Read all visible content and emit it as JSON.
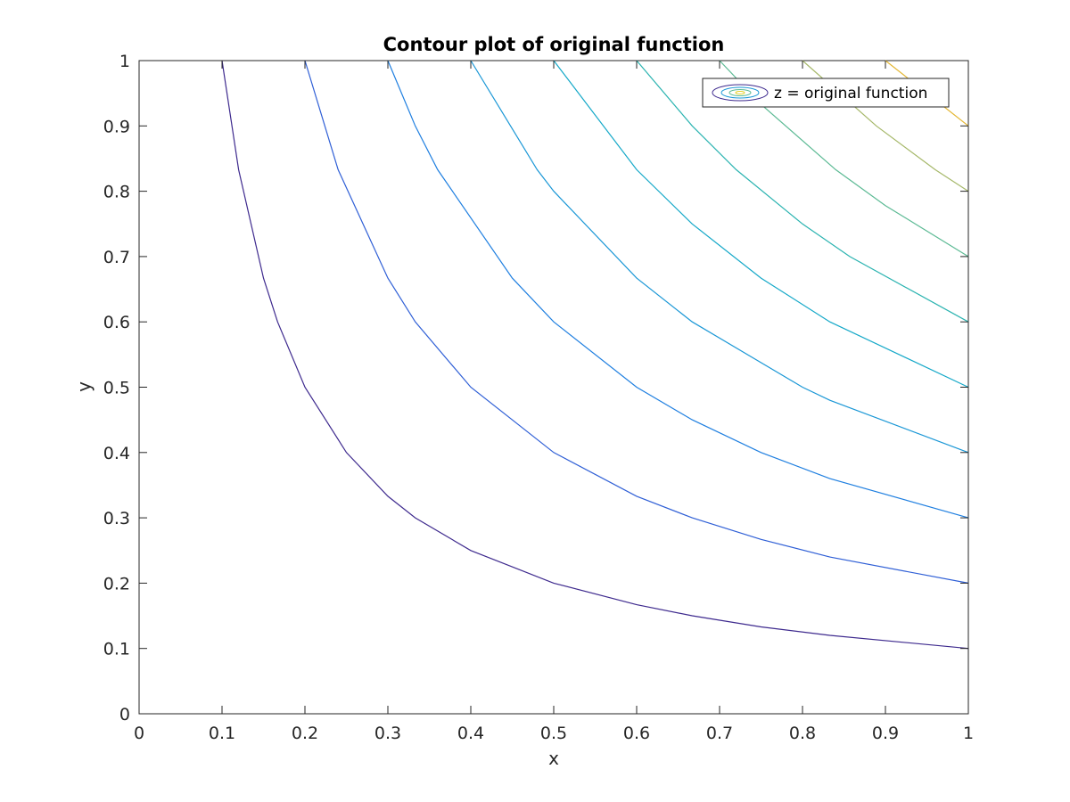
{
  "chart_data": {
    "type": "contour",
    "title": "Contour plot of original function",
    "xlabel": "x",
    "ylabel": "y",
    "xlim": [
      0,
      1
    ],
    "ylim": [
      0,
      1
    ],
    "x_ticks": [
      "0",
      "0.1",
      "0.2",
      "0.3",
      "0.4",
      "0.5",
      "0.6",
      "0.7",
      "0.8",
      "0.9",
      "1"
    ],
    "y_ticks": [
      "0",
      "0.1",
      "0.2",
      "0.3",
      "0.4",
      "0.5",
      "0.6",
      "0.7",
      "0.8",
      "0.9",
      "1"
    ],
    "grid": false,
    "legend": {
      "label": "z = original function",
      "position": "top-right"
    },
    "contours": [
      {
        "level": 0.1,
        "color": "#3e2a8e",
        "points": [
          [
            0.1,
            1
          ],
          [
            0.12,
            0.833
          ],
          [
            0.15,
            0.667
          ],
          [
            0.167,
            0.6
          ],
          [
            0.2,
            0.5
          ],
          [
            0.25,
            0.4
          ],
          [
            0.3,
            0.333
          ],
          [
            0.333,
            0.3
          ],
          [
            0.4,
            0.25
          ],
          [
            0.5,
            0.2
          ],
          [
            0.6,
            0.167
          ],
          [
            0.667,
            0.15
          ],
          [
            0.75,
            0.133
          ],
          [
            0.833,
            0.12
          ],
          [
            1,
            0.1
          ]
        ]
      },
      {
        "level": 0.2,
        "color": "#2f5fd6",
        "points": [
          [
            0.2,
            1
          ],
          [
            0.24,
            0.833
          ],
          [
            0.3,
            0.667
          ],
          [
            0.333,
            0.6
          ],
          [
            0.4,
            0.5
          ],
          [
            0.5,
            0.4
          ],
          [
            0.6,
            0.333
          ],
          [
            0.667,
            0.3
          ],
          [
            0.75,
            0.267
          ],
          [
            0.833,
            0.24
          ],
          [
            1,
            0.2
          ]
        ]
      },
      {
        "level": 0.3,
        "color": "#1f7fe0",
        "points": [
          [
            0.3,
            1
          ],
          [
            0.333,
            0.9
          ],
          [
            0.36,
            0.833
          ],
          [
            0.45,
            0.667
          ],
          [
            0.5,
            0.6
          ],
          [
            0.6,
            0.5
          ],
          [
            0.667,
            0.45
          ],
          [
            0.75,
            0.4
          ],
          [
            0.833,
            0.36
          ],
          [
            1,
            0.3
          ]
        ]
      },
      {
        "level": 0.4,
        "color": "#1a97d6",
        "points": [
          [
            0.4,
            1
          ],
          [
            0.48,
            0.833
          ],
          [
            0.5,
            0.8
          ],
          [
            0.6,
            0.667
          ],
          [
            0.667,
            0.6
          ],
          [
            0.8,
            0.5
          ],
          [
            0.833,
            0.48
          ],
          [
            1,
            0.4
          ]
        ]
      },
      {
        "level": 0.5,
        "color": "#14a8c8",
        "points": [
          [
            0.5,
            1
          ],
          [
            0.6,
            0.833
          ],
          [
            0.667,
            0.75
          ],
          [
            0.75,
            0.667
          ],
          [
            0.833,
            0.6
          ],
          [
            1,
            0.5
          ]
        ]
      },
      {
        "level": 0.6,
        "color": "#2ab3b0",
        "points": [
          [
            0.6,
            1
          ],
          [
            0.667,
            0.9
          ],
          [
            0.72,
            0.833
          ],
          [
            0.8,
            0.75
          ],
          [
            0.857,
            0.7
          ],
          [
            1,
            0.6
          ]
        ]
      },
      {
        "level": 0.7,
        "color": "#5cba94",
        "points": [
          [
            0.7,
            1
          ],
          [
            0.75,
            0.933
          ],
          [
            0.84,
            0.833
          ],
          [
            0.9,
            0.778
          ],
          [
            1,
            0.7
          ]
        ]
      },
      {
        "level": 0.8,
        "color": "#a6b86a",
        "points": [
          [
            0.8,
            1
          ],
          [
            0.889,
            0.9
          ],
          [
            0.96,
            0.833
          ],
          [
            1,
            0.8
          ]
        ]
      },
      {
        "level": 0.9,
        "color": "#e3b632",
        "points": [
          [
            0.9,
            1
          ],
          [
            1,
            0.9
          ]
        ]
      }
    ]
  }
}
